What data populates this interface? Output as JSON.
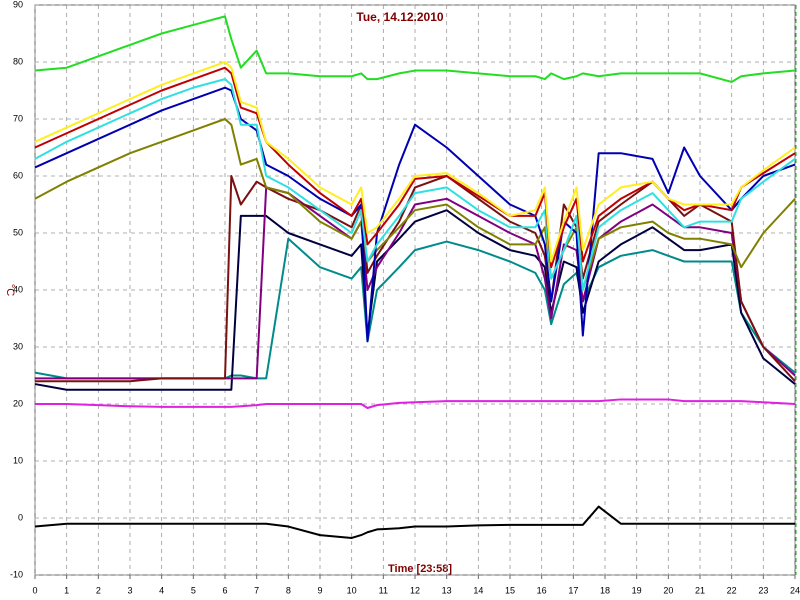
{
  "chart_data": {
    "type": "line",
    "title": "Tue, 14.12.2010",
    "x_label": "Time [23:58]",
    "y_label": "°C",
    "grid": true,
    "xlim": [
      0,
      24
    ],
    "xticks": [
      0,
      1,
      2,
      3,
      4,
      5,
      6,
      7,
      8,
      9,
      10,
      11,
      12,
      13,
      14,
      15,
      16,
      17,
      18,
      19,
      20,
      21,
      22,
      23,
      24
    ],
    "ylim": [
      -10,
      90
    ],
    "yticks": [
      -10,
      0,
      10,
      20,
      30,
      40,
      50,
      60,
      70,
      80,
      90
    ],
    "x": [
      0,
      1,
      2,
      3,
      4,
      5,
      6,
      6.2,
      6.5,
      7,
      7.3,
      8,
      9,
      10,
      10.3,
      10.5,
      10.8,
      11.5,
      12,
      13,
      14,
      15,
      15.8,
      16.1,
      16.3,
      16.7,
      17.1,
      17.3,
      17.8,
      18.5,
      19.5,
      20,
      20.5,
      21,
      22,
      22.3,
      23,
      24
    ],
    "series": [
      {
        "color": "#008b8b",
        "values": [
          25.5,
          24.5,
          24.5,
          24.5,
          24.5,
          24.5,
          24.5,
          25,
          25,
          24.5,
          24.5,
          49,
          44,
          42,
          44,
          31,
          40,
          44,
          47,
          48.5,
          47,
          45,
          43,
          40,
          34,
          41,
          43,
          38,
          44,
          46,
          47,
          46,
          45,
          45,
          45,
          36,
          30,
          25.5
        ]
      },
      {
        "color": "#000040",
        "values": [
          23.5,
          22.5,
          22.5,
          22.5,
          22.5,
          22.5,
          22.5,
          22.5,
          53,
          53,
          53,
          50,
          48,
          46,
          48,
          32,
          45,
          49,
          52,
          54,
          50,
          47,
          46,
          44,
          36,
          45,
          44,
          36,
          45,
          48,
          51,
          49,
          47,
          47,
          48,
          36,
          28,
          23.5
        ]
      },
      {
        "color": "#800080",
        "values": [
          24.5,
          24.5,
          24.5,
          24.5,
          24.5,
          24.5,
          24.5,
          24.5,
          24.5,
          24.5,
          58,
          57,
          53,
          49,
          52,
          40,
          44,
          50,
          55,
          56,
          53,
          50,
          48,
          42,
          35,
          48,
          47,
          38,
          49,
          52,
          55,
          53,
          51,
          51,
          50,
          38,
          30,
          25
        ]
      },
      {
        "color": "#7a1010",
        "values": [
          24,
          24,
          24,
          24,
          24.5,
          24.5,
          24.5,
          60,
          55,
          59,
          58,
          56,
          54,
          51,
          55,
          43,
          46,
          52,
          58,
          60,
          56,
          52,
          50,
          46,
          38,
          55,
          51,
          42,
          52,
          55,
          59,
          56,
          53,
          55,
          52,
          38,
          30,
          24
        ]
      },
      {
        "color": "#808000",
        "values": [
          56,
          59,
          61.5,
          64,
          66,
          68,
          70,
          69,
          62,
          63,
          58,
          57,
          52,
          49,
          52,
          45,
          47,
          51,
          54,
          55,
          51,
          48,
          48,
          51,
          42,
          47,
          51,
          40,
          49,
          51,
          52,
          50,
          49,
          49,
          48,
          44,
          50,
          56
        ]
      },
      {
        "color": "#0000b0",
        "values": [
          61.5,
          64,
          66.5,
          69,
          71.5,
          73.5,
          75.5,
          75,
          70,
          68,
          62,
          60,
          56,
          53,
          55,
          31,
          50,
          62,
          69,
          65,
          60,
          55,
          53,
          48,
          38,
          52,
          50,
          32,
          64,
          64,
          63,
          57,
          65,
          60,
          54,
          56,
          60,
          62
        ]
      },
      {
        "color": "#30e0e0",
        "values": [
          63,
          66,
          68.5,
          71,
          73.5,
          75.5,
          77,
          76,
          69,
          69,
          60,
          58,
          54,
          50,
          54,
          45,
          48,
          53,
          57,
          58,
          54,
          51,
          51,
          54,
          42,
          47,
          53,
          40,
          51,
          54,
          57,
          54,
          51,
          52,
          52,
          56,
          59,
          63
        ]
      },
      {
        "color": "#c00000",
        "values": [
          65,
          67.5,
          70,
          72.5,
          75,
          77,
          79,
          78,
          72,
          71,
          66,
          62,
          57,
          53,
          56,
          48,
          50,
          55,
          59.5,
          60,
          56.5,
          53,
          53,
          57,
          44,
          51,
          56,
          45,
          53,
          56,
          59,
          56,
          54,
          55,
          54,
          58,
          60.5,
          64
        ]
      },
      {
        "color": "#ffee22",
        "values": [
          66,
          68.5,
          71,
          73.5,
          76,
          78,
          80,
          79,
          73,
          72,
          66,
          63,
          58,
          55,
          58,
          50,
          51,
          56,
          60,
          60.5,
          57,
          53,
          54,
          58,
          45,
          52,
          58,
          47,
          55,
          58,
          59,
          56,
          55,
          55,
          55,
          58,
          61,
          65
        ]
      },
      {
        "color": "#22dd22",
        "values": [
          78.5,
          79,
          81,
          83,
          85,
          86.5,
          88,
          84,
          79,
          82,
          78,
          78,
          77.5,
          77.5,
          78,
          77,
          77,
          78,
          78.5,
          78.5,
          78,
          77.5,
          77.5,
          77,
          78,
          77,
          77.5,
          78,
          77.5,
          78,
          78,
          78,
          78,
          78,
          76.5,
          77.5,
          78,
          78.5
        ]
      },
      {
        "color": "#e020e0",
        "values": [
          20,
          20,
          19.8,
          19.6,
          19.5,
          19.5,
          19.5,
          19.5,
          19.6,
          19.8,
          20,
          20,
          20,
          20,
          20,
          19.3,
          19.8,
          20.2,
          20.3,
          20.5,
          20.5,
          20.5,
          20.5,
          20.5,
          20.5,
          20.5,
          20.5,
          20.5,
          20.5,
          20.8,
          20.8,
          20.8,
          20.5,
          20.5,
          20.5,
          20.5,
          20.3,
          20
        ]
      },
      {
        "color": "#000000",
        "values": [
          -1.5,
          -1,
          -1,
          -1,
          -1,
          -1,
          -1,
          -1,
          -1,
          -1,
          -1,
          -1.5,
          -3,
          -3.5,
          -3,
          -2.5,
          -2,
          -1.8,
          -1.5,
          -1.5,
          -1.3,
          -1.2,
          -1.2,
          -1.2,
          -1.2,
          -1.2,
          -1.2,
          -1.2,
          2,
          -1,
          -1,
          -1,
          -1,
          -1,
          -1,
          -1,
          -1,
          -1
        ]
      }
    ]
  }
}
